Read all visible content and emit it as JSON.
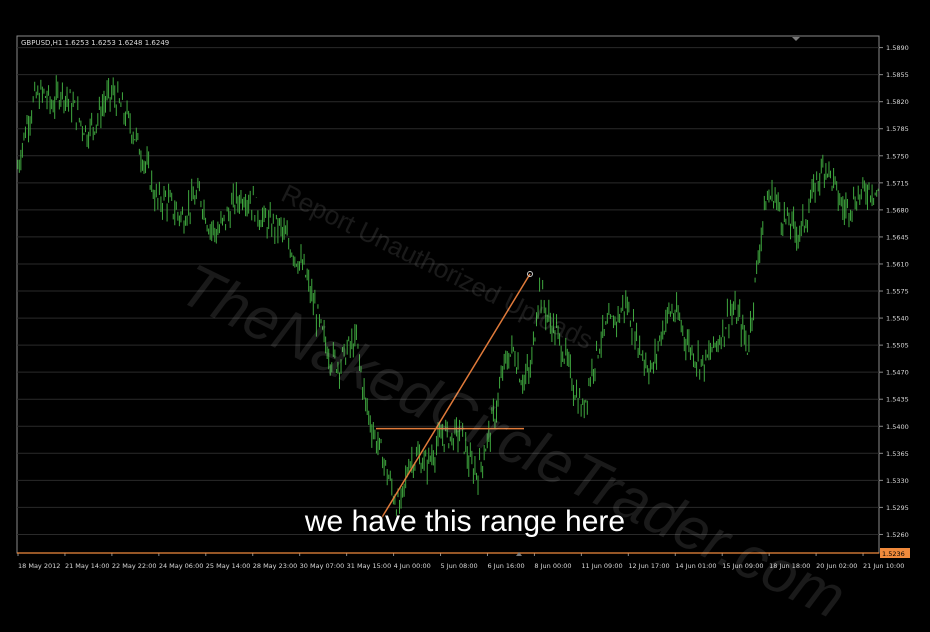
{
  "window": {
    "symbol_info": "GBPUSD,H1  1.6253 1.6253 1.6248 1.6249",
    "current_price_tag": "1.5236"
  },
  "watermark": {
    "line1": "Report Unauthorized Uploads",
    "line2": "TheNakedCircleTrader.com"
  },
  "subtitle": "we have this range here",
  "colors": {
    "background": "#000000",
    "candles": "#3fa83f",
    "grid": "#2a2a2a",
    "axis_text": "#d8d8d8",
    "drawn_lines": "#e07a3a",
    "price_line": "#f08a3c"
  },
  "chart_data": {
    "type": "line",
    "symbol": "GBPUSD",
    "timeframe": "H1",
    "y_ticks": [
      "1.5890",
      "1.5855",
      "1.5820",
      "1.5785",
      "1.5750",
      "1.5715",
      "1.5680",
      "1.5645",
      "1.5610",
      "1.5575",
      "1.5540",
      "1.5505",
      "1.5470",
      "1.5435",
      "1.5400",
      "1.5365",
      "1.5330",
      "1.5295",
      "1.5260"
    ],
    "x_ticks": [
      "18 May 2012",
      "21 May 14:00",
      "22 May 22:00",
      "24 May 06:00",
      "25 May 14:00",
      "28 May 23:00",
      "30 May 07:00",
      "31 May 15:00",
      "4 Jun 00:00",
      "5 Jun 08:00",
      "6 Jun 16:00",
      "8 Jun 00:00",
      "11 Jun 09:00",
      "12 Jun 17:00",
      "14 Jun 01:00",
      "15 Jun 09:00",
      "18 Jun 18:00",
      "20 Jun 02:00",
      "21 Jun 10:00"
    ],
    "ylim": [
      1.5236,
      1.5905
    ],
    "series": [
      {
        "values": [
          1.5735,
          1.579,
          1.5825,
          1.583,
          1.5815,
          1.5835,
          1.582,
          1.58,
          1.578,
          1.5795,
          1.582,
          1.583,
          1.581,
          1.579,
          1.576,
          1.573,
          1.569,
          1.5695,
          1.568,
          1.567,
          1.569,
          1.57,
          1.566,
          1.565,
          1.567,
          1.569,
          1.57,
          1.569,
          1.567,
          1.566,
          1.566,
          1.564,
          1.562,
          1.56,
          1.556,
          1.552,
          1.549,
          1.548,
          1.55,
          1.551,
          1.543,
          1.539,
          1.536,
          1.532,
          1.529,
          1.5355,
          1.536,
          1.535,
          1.537,
          1.539,
          1.5385,
          1.5395,
          1.535,
          1.534,
          1.538,
          1.542,
          1.548,
          1.55,
          1.546,
          1.547,
          1.558,
          1.554,
          1.552,
          1.549,
          1.545,
          1.542,
          1.547,
          1.551,
          1.553,
          1.554,
          1.556,
          1.552,
          1.549,
          1.547,
          1.552,
          1.555,
          1.554,
          1.551,
          1.549,
          1.548,
          1.55,
          1.552,
          1.555,
          1.554,
          1.55,
          1.56,
          1.569,
          1.57,
          1.567,
          1.566,
          1.565,
          1.568,
          1.572,
          1.574,
          1.571,
          1.568,
          1.569,
          1.57,
          1.571,
          1.57
        ],
        "line_style": "candlestick-like H1 bars (approximated)"
      }
    ],
    "annotations": {
      "horizontal_range_line_price": 1.5397,
      "trendline_from_price": 1.5278,
      "trendline_to_price": 1.5597
    },
    "grid": true
  }
}
